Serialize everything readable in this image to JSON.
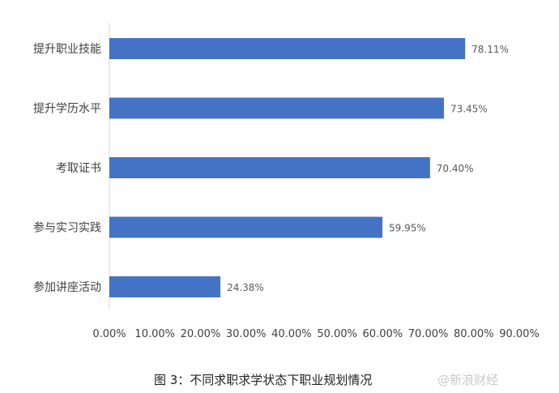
{
  "chart_data": {
    "type": "bar",
    "orientation": "horizontal",
    "categories": [
      "提升职业技能",
      "提升学历水平",
      "考取证书",
      "参与实习实践",
      "参加讲座活动"
    ],
    "values": [
      78.11,
      73.45,
      70.4,
      59.95,
      24.38
    ],
    "data_labels": [
      "78.11%",
      "73.45%",
      "70.40%",
      "59.95%",
      "24.38%"
    ],
    "xlim": [
      0,
      90
    ],
    "x_ticks": [
      "0.00%",
      "10.00%",
      "20.00%",
      "30.00%",
      "40.00%",
      "50.00%",
      "60.00%",
      "70.00%",
      "80.00%",
      "90.00%"
    ],
    "grid": false,
    "bar_color": "#4472C4",
    "caption": "图 3：不同求职求学状态下职业规划情况"
  },
  "watermark": "@新浪财经"
}
